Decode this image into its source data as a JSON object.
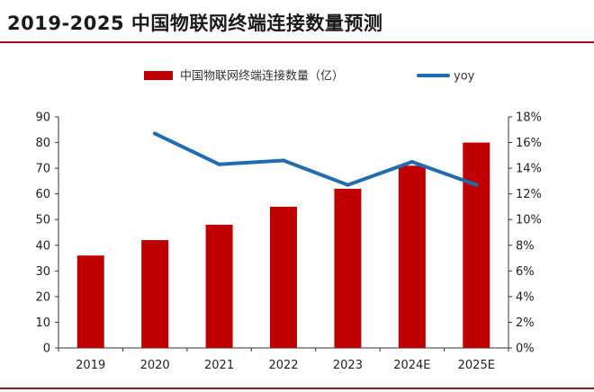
{
  "title": "2019-2025 中国物联网终端连接数量预测",
  "colors": {
    "bar": "#c00000",
    "line": "#1f6cb0",
    "rule": "#a50c1a",
    "axis": "#333333"
  },
  "chart_data": {
    "type": "bar",
    "categories": [
      "2019",
      "2020",
      "2021",
      "2022",
      "2023",
      "2024E",
      "2025E"
    ],
    "series": [
      {
        "name": "中国物联网终端连接数量（亿）",
        "type": "bar",
        "axis": "left",
        "values": [
          36,
          42,
          48,
          55,
          62,
          71,
          80
        ]
      },
      {
        "name": "yoy",
        "type": "line",
        "axis": "right",
        "values": [
          null,
          16.7,
          14.3,
          14.6,
          12.7,
          14.5,
          12.7
        ]
      }
    ],
    "y_left": {
      "min": 0,
      "max": 90,
      "step": 10,
      "ticks": [
        "0",
        "10",
        "20",
        "30",
        "40",
        "50",
        "60",
        "70",
        "80",
        "90"
      ]
    },
    "y_right": {
      "min": 0,
      "max": 18,
      "step": 2,
      "ticks": [
        "0%",
        "2%",
        "4%",
        "6%",
        "8%",
        "10%",
        "12%",
        "14%",
        "16%",
        "18%"
      ]
    },
    "legend": {
      "position": "top-center",
      "items": [
        {
          "label": "中国物联网终端连接数量（亿）",
          "kind": "bar"
        },
        {
          "label": "yoy",
          "kind": "line"
        }
      ]
    },
    "grid": false
  }
}
